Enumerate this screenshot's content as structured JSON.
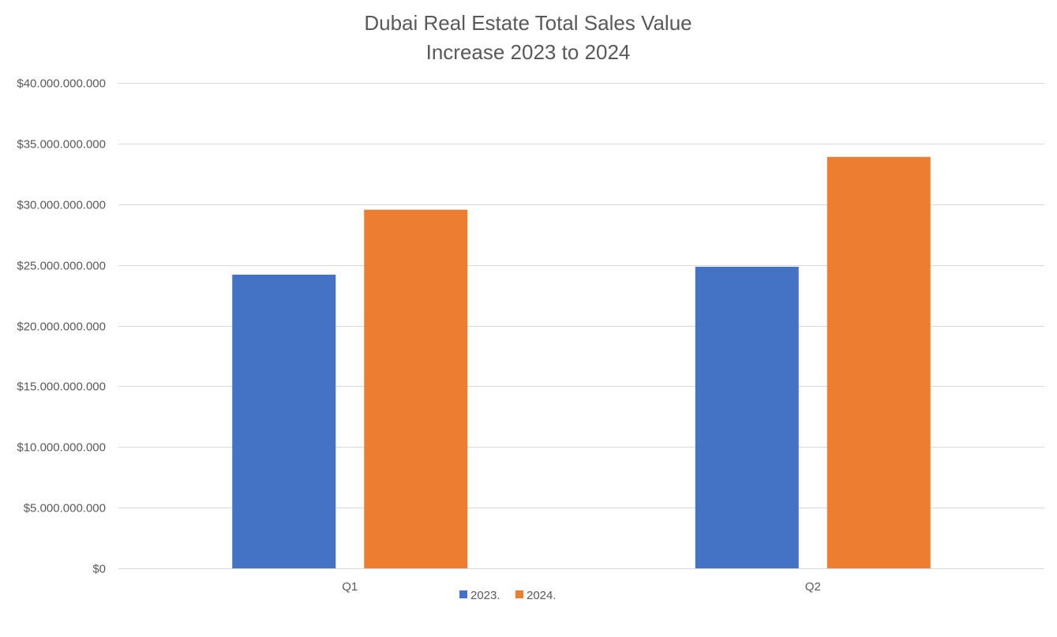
{
  "chart_data": {
    "type": "bar",
    "title_lines": [
      "Dubai Real Estate Total Sales Value",
      "Increase 2023 to 2024"
    ],
    "xlabel": "",
    "ylabel": "",
    "categories": [
      "Q1",
      "Q2"
    ],
    "series": [
      {
        "name": "2023.",
        "color": "#4472C4",
        "values": [
          24200000000,
          24850000000
        ]
      },
      {
        "name": "2024.",
        "color": "#ED7D31",
        "values": [
          29550000000,
          33900000000
        ]
      }
    ],
    "ylim": [
      0,
      40000000000
    ],
    "yticks": [
      0,
      5000000000,
      10000000000,
      15000000000,
      20000000000,
      25000000000,
      30000000000,
      35000000000,
      40000000000
    ],
    "ytick_labels": [
      "$0",
      "$5.000.000.000",
      "$10.000.000.000",
      "$15.000.000.000",
      "$20.000.000.000",
      "$25.000.000.000",
      "$30.000.000.000",
      "$35.000.000.000",
      "$40.000.000.000"
    ],
    "grid": true,
    "legend_position": "bottom"
  }
}
